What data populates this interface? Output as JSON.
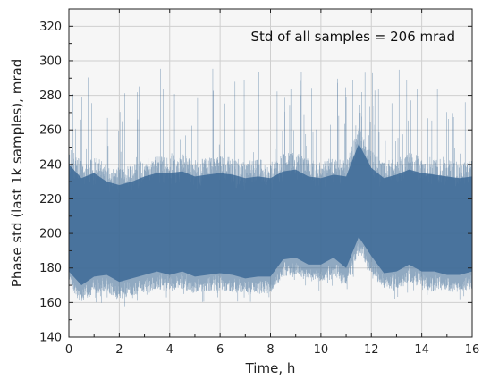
{
  "chart_data": {
    "type": "line",
    "title": "",
    "xlabel": "Time, h",
    "ylabel": "Phase std (last 1k samples), mrad",
    "xlim": [
      0,
      16
    ],
    "ylim": [
      140,
      330
    ],
    "xticks": [
      0,
      2,
      4,
      6,
      8,
      10,
      12,
      14,
      16
    ],
    "yticks": [
      140,
      160,
      180,
      200,
      220,
      240,
      260,
      280,
      300,
      320
    ],
    "xtick_labels": [
      "0",
      "2",
      "4",
      "6",
      "8",
      "10",
      "12",
      "14",
      "16"
    ],
    "ytick_labels": [
      "140",
      "160",
      "180",
      "200",
      "220",
      "240",
      "260",
      "280",
      "300",
      "320"
    ],
    "grid": true,
    "annotation": "Std of all samples = 206 mrad",
    "series": [
      {
        "color": "#3d6a96",
        "x": [
          0,
          0.5,
          1,
          1.5,
          2,
          2.5,
          3,
          3.5,
          4,
          4.5,
          5,
          5.5,
          6,
          6.5,
          7,
          7.5,
          8,
          8.5,
          9,
          9.5,
          10,
          10.5,
          11,
          11.5,
          12,
          12.5,
          13,
          13.5,
          14,
          14.5,
          15,
          15.5,
          16
        ],
        "y": [
          208,
          200,
          205,
          204,
          200,
          202,
          204,
          206,
          205,
          207,
          203,
          205,
          206,
          204,
          203,
          204,
          202,
          210,
          211,
          207,
          206,
          208,
          207,
          225,
          212,
          204,
          206,
          210,
          207,
          206,
          205,
          204,
          206
        ],
        "band_low": [
          168,
          160,
          165,
          166,
          162,
          164,
          166,
          168,
          166,
          168,
          165,
          166,
          167,
          166,
          164,
          165,
          165,
          175,
          176,
          172,
          172,
          176,
          170,
          188,
          177,
          167,
          168,
          172,
          168,
          168,
          166,
          166,
          168
        ],
        "band_high": [
          250,
          242,
          245,
          240,
          238,
          240,
          243,
          245,
          245,
          246,
          243,
          244,
          245,
          244,
          242,
          243,
          242,
          246,
          247,
          243,
          242,
          244,
          243,
          262,
          248,
          242,
          244,
          247,
          245,
          244,
          243,
          242,
          243
        ],
        "peak_high": [
          312,
          298,
          300,
          290,
          280,
          290,
          296,
          303,
          302,
          300,
          290,
          296,
          300,
          292,
          292,
          295,
          280,
          297,
          300,
          288,
          290,
          292,
          285,
          296,
          296,
          284,
          298,
          292,
          304,
          294,
          286,
          288,
          278
        ]
      }
    ]
  }
}
